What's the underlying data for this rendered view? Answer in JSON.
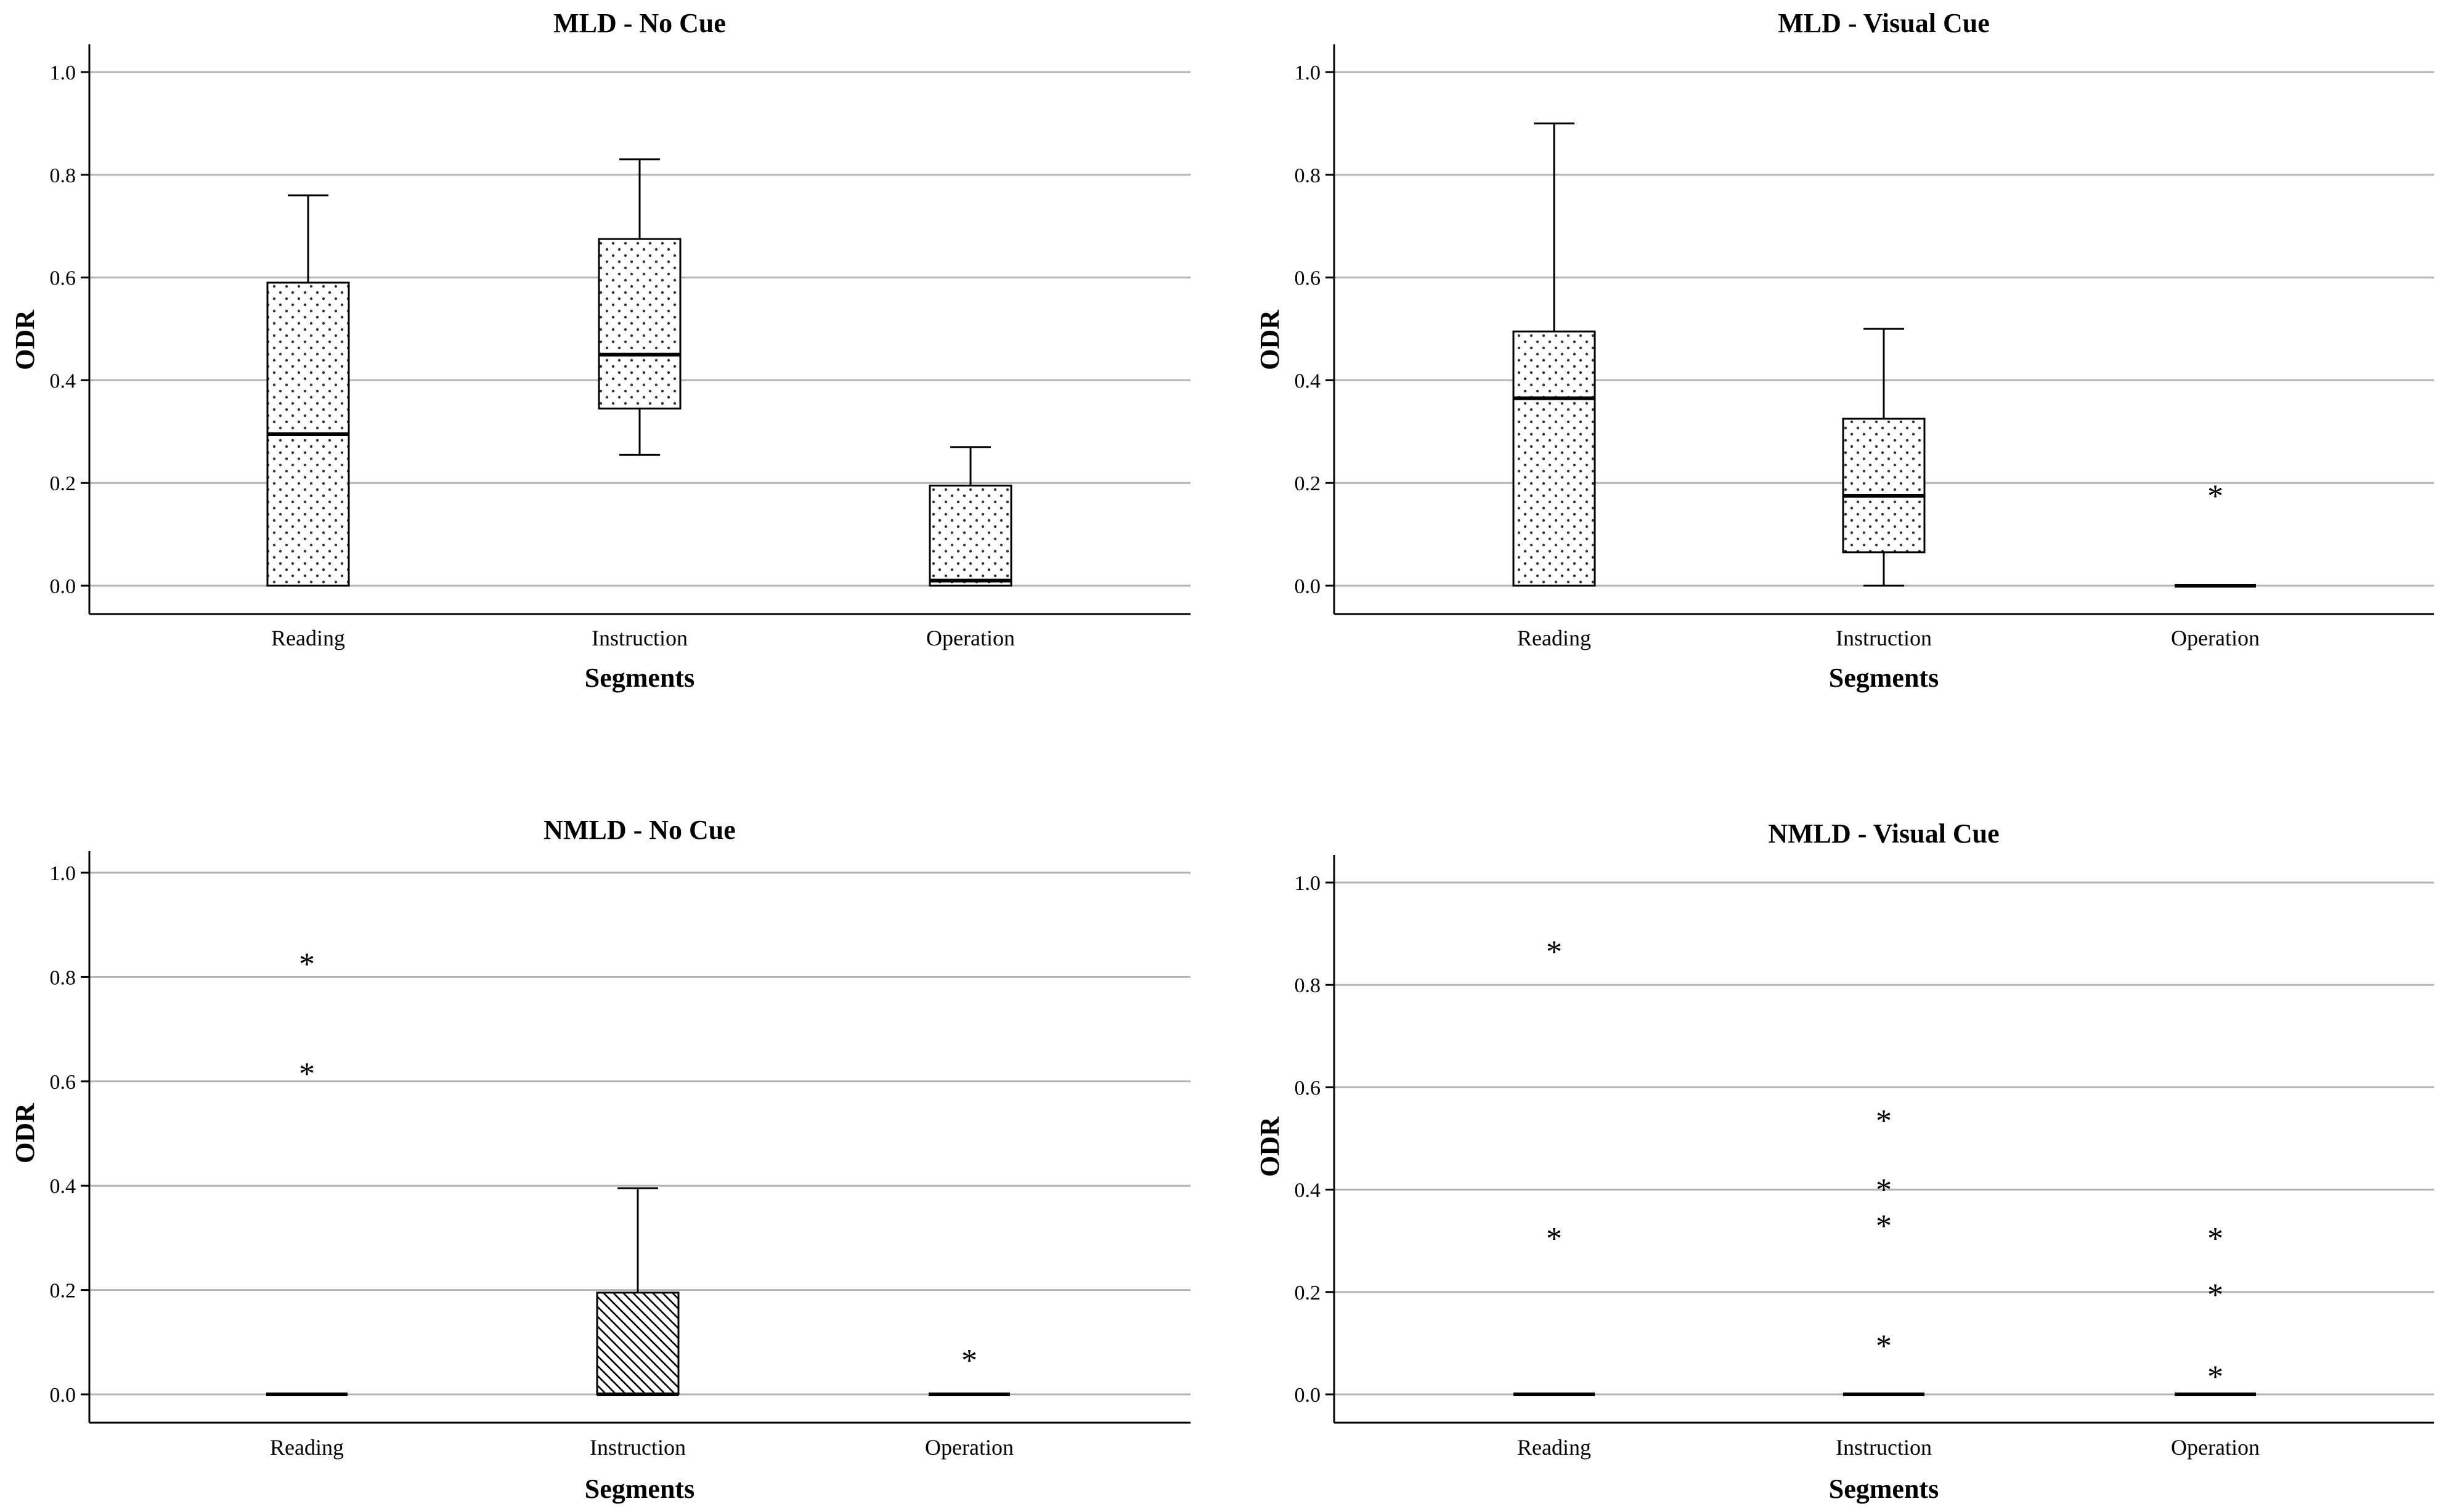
{
  "chart_data": [
    {
      "type": "boxplot",
      "title": "MLD - No Cue",
      "xlabel": "Segments",
      "ylabel": "ODR",
      "ylim": [
        0,
        1.0
      ],
      "yticks": [
        "0.0",
        "0.2",
        "0.4",
        "0.6",
        "0.8",
        "1.0"
      ],
      "categories": [
        "Reading",
        "Instruction",
        "Operation"
      ],
      "boxes": [
        {
          "category": "Reading",
          "min": 0.0,
          "q1": 0.0,
          "median": 0.295,
          "q3": 0.59,
          "max": 0.76,
          "fill": "dots",
          "outliers": []
        },
        {
          "category": "Instruction",
          "min": 0.255,
          "q1": 0.345,
          "median": 0.45,
          "q3": 0.675,
          "max": 0.83,
          "fill": "dots",
          "outliers": []
        },
        {
          "category": "Operation",
          "min": 0.0,
          "q1": 0.0,
          "median": 0.01,
          "q3": 0.195,
          "max": 0.27,
          "fill": "dots",
          "outliers": []
        }
      ]
    },
    {
      "type": "boxplot",
      "title": "MLD - Visual Cue",
      "xlabel": "Segments",
      "ylabel": "ODR",
      "ylim": [
        0,
        1.0
      ],
      "yticks": [
        "0.0",
        "0.2",
        "0.4",
        "0.6",
        "0.8",
        "1.0"
      ],
      "categories": [
        "Reading",
        "Instruction",
        "Operation"
      ],
      "boxes": [
        {
          "category": "Reading",
          "min": 0.0,
          "q1": 0.0,
          "median": 0.365,
          "q3": 0.495,
          "max": 0.9,
          "fill": "dots",
          "outliers": []
        },
        {
          "category": "Instruction",
          "min": 0.0,
          "q1": 0.065,
          "median": 0.175,
          "q3": 0.325,
          "max": 0.5,
          "fill": "dots",
          "outliers": []
        },
        {
          "category": "Operation",
          "min": 0.0,
          "q1": 0.0,
          "median": 0.0,
          "q3": 0.0,
          "max": 0.0,
          "fill": "dots",
          "outliers": [
            0.19
          ]
        }
      ]
    },
    {
      "type": "boxplot",
      "title": "NMLD - No Cue",
      "xlabel": "Segments",
      "ylabel": "ODR",
      "ylim": [
        0,
        1.0
      ],
      "yticks": [
        "0.0",
        "0.2",
        "0.4",
        "0.6",
        "0.8",
        "1.0"
      ],
      "categories": [
        "Reading",
        "Instruction",
        "Operation"
      ],
      "boxes": [
        {
          "category": "Reading",
          "min": 0.0,
          "q1": 0.0,
          "median": 0.0,
          "q3": 0.0,
          "max": 0.0,
          "fill": "dots",
          "outliers": [
            0.63,
            0.84
          ]
        },
        {
          "category": "Instruction",
          "min": 0.0,
          "q1": 0.0,
          "median": 0.0,
          "q3": 0.195,
          "max": 0.395,
          "fill": "hatch",
          "outliers": []
        },
        {
          "category": "Operation",
          "min": 0.0,
          "q1": 0.0,
          "median": 0.0,
          "q3": 0.0,
          "max": 0.0,
          "fill": "dots",
          "outliers": [
            0.08
          ]
        }
      ]
    },
    {
      "type": "boxplot",
      "title": "NMLD - Visual Cue",
      "xlabel": "Segments",
      "ylabel": "ODR",
      "ylim": [
        0,
        1.0
      ],
      "yticks": [
        "0.0",
        "0.2",
        "0.4",
        "0.6",
        "0.8",
        "1.0"
      ],
      "categories": [
        "Reading",
        "Instruction",
        "Operation"
      ],
      "boxes": [
        {
          "category": "Reading",
          "min": 0.0,
          "q1": 0.0,
          "median": 0.0,
          "q3": 0.0,
          "max": 0.0,
          "fill": "dots",
          "outliers": [
            0.32,
            0.88
          ]
        },
        {
          "category": "Instruction",
          "min": 0.0,
          "q1": 0.0,
          "median": 0.0,
          "q3": 0.0,
          "max": 0.0,
          "fill": "dots",
          "outliers": [
            0.11,
            0.345,
            0.415,
            0.55
          ]
        },
        {
          "category": "Operation",
          "min": 0.0,
          "q1": 0.0,
          "median": 0.0,
          "q3": 0.0,
          "max": 0.0,
          "fill": "dots",
          "outliers": [
            0.05,
            0.21,
            0.32
          ]
        }
      ]
    }
  ]
}
